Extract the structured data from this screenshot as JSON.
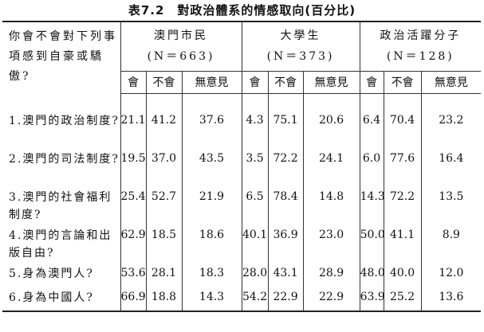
{
  "title": "表7.2　對政治體系的情感取向(百分比)",
  "table": {
    "corner": "你會不會對下列事項感到自豪或驕傲?",
    "groups": [
      {
        "name": "澳門市民",
        "n": "(N＝663)",
        "columns": [
          "會",
          "不會",
          "無意見"
        ]
      },
      {
        "name": "大學生",
        "n": "(N＝373)",
        "columns": [
          "會",
          "不會",
          "無意見"
        ]
      },
      {
        "name": "政治活躍分子",
        "n": "(N＝128)",
        "columns": [
          "會",
          "不會",
          "無意見"
        ]
      }
    ],
    "rows": [
      {
        "label": "1.澳門的政治制度?",
        "values": [
          "21.1",
          "41.2",
          "37.6",
          "4.3",
          "75.1",
          "20.6",
          "6.4",
          "70.4",
          "23.2"
        ]
      },
      {
        "label": "2.澳門的司法制度?",
        "values": [
          "19.5",
          "37.0",
          "43.5",
          "3.5",
          "72.2",
          "24.1",
          "6.0",
          "77.6",
          "16.4"
        ]
      },
      {
        "label": "3.澳門的社會福利制度?",
        "values": [
          "25.4",
          "52.7",
          "21.9",
          "6.5",
          "78.4",
          "14.8",
          "14.3",
          "72.2",
          "13.5"
        ]
      },
      {
        "label": "4.澳門的言論和出版自由?",
        "values": [
          "62.9",
          "18.5",
          "18.6",
          "40.1",
          "36.9",
          "23.0",
          "50.0",
          "41.1",
          "8.9"
        ]
      },
      {
        "label": "5.身為澳門人?",
        "values": [
          "53.6",
          "28.1",
          "18.3",
          "28.0",
          "43.1",
          "28.9",
          "48.0",
          "40.0",
          "12.0"
        ]
      },
      {
        "label": "6.身為中國人?",
        "values": [
          "66.9",
          "18.8",
          "14.3",
          "54.2",
          "22.9",
          "22.9",
          "63.9",
          "25.2",
          "13.6"
        ]
      }
    ]
  }
}
